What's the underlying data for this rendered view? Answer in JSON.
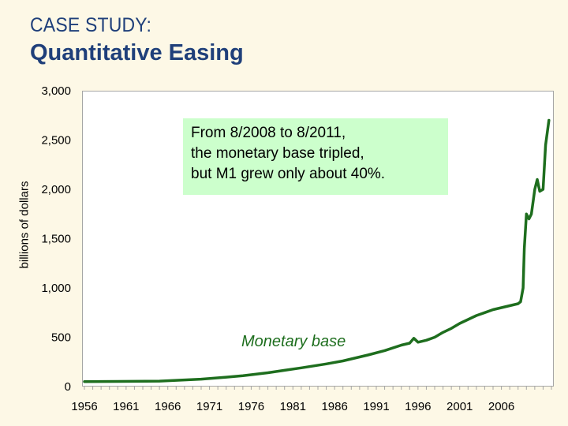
{
  "header": {
    "case_label": "CASE STUDY:",
    "title": "Quantitative Easing"
  },
  "callout": {
    "lines": [
      "From 8/2008 to 8/2011,",
      "the monetary base tripled,",
      "but M1 grew only about 40%."
    ]
  },
  "colors": {
    "background": "#fdf8e6",
    "title": "#1f3f7a",
    "series_line": "#1e6e1e",
    "callout_fill": "#ccffcc"
  },
  "chart_data": {
    "type": "line",
    "title": "",
    "xlabel": "",
    "ylabel": "billions of dollars",
    "xlim": [
      1956,
      2012
    ],
    "ylim": [
      0,
      3000
    ],
    "y_ticks": [
      0,
      500,
      1000,
      1500,
      2000,
      2500,
      3000
    ],
    "y_tick_labels": [
      "0",
      "500",
      "1,000",
      "1,500",
      "2,000",
      "2,500",
      "3,000"
    ],
    "x_ticks": [
      1956,
      1961,
      1966,
      1971,
      1976,
      1981,
      1986,
      1991,
      1996,
      2001,
      2006
    ],
    "x_tick_labels": [
      "1956",
      "1961",
      "1966",
      "1971",
      "1976",
      "1981",
      "1986",
      "1991",
      "1996",
      "2001",
      "2006"
    ],
    "grid": false,
    "series": [
      {
        "name": "Monetary base",
        "x": [
          1956,
          1960,
          1965,
          1970,
          1973,
          1975,
          1978,
          1980,
          1982,
          1985,
          1987,
          1990,
          1992,
          1994,
          1995,
          1995.5,
          1996,
          1997,
          1998,
          1999,
          2000,
          2001,
          2002,
          2003,
          2004,
          2005,
          2006,
          2007,
          2008.0,
          2008.3,
          2008.6,
          2008.75,
          2009,
          2009.3,
          2009.6,
          2010,
          2010.3,
          2010.6,
          2011,
          2011.3,
          2011.7
        ],
        "y": [
          50,
          52,
          55,
          75,
          95,
          110,
          140,
          165,
          190,
          230,
          260,
          320,
          365,
          420,
          440,
          490,
          450,
          470,
          500,
          550,
          590,
          640,
          680,
          720,
          750,
          780,
          800,
          820,
          840,
          860,
          1000,
          1400,
          1750,
          1700,
          1750,
          2000,
          2100,
          1980,
          2000,
          2450,
          2700
        ]
      }
    ]
  }
}
